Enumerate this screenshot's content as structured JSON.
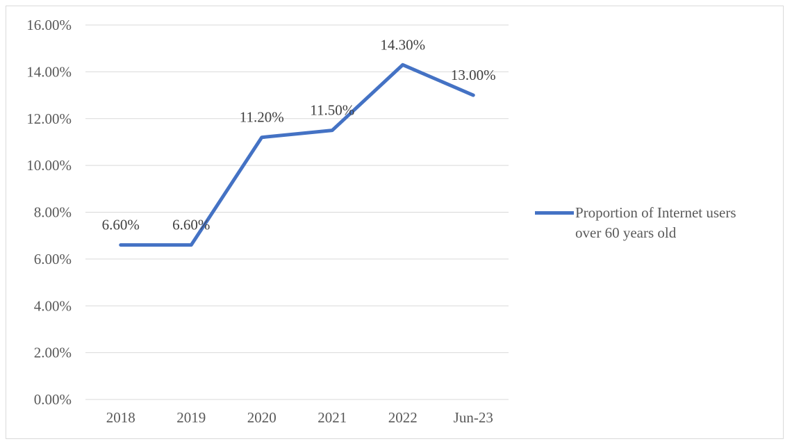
{
  "chart_data": {
    "type": "line",
    "categories": [
      "2018",
      "2019",
      "2020",
      "2021",
      "2022",
      "Jun-23"
    ],
    "series": [
      {
        "name": "Proportion of Internet users over 60 years old",
        "values": [
          6.6,
          6.6,
          11.2,
          11.5,
          14.3,
          13.0
        ],
        "data_labels": [
          "6.60%",
          "6.60%",
          "11.20%",
          "11.50%",
          "14.30%",
          "13.00%"
        ],
        "color": "#4472c4"
      }
    ],
    "y_ticks": [
      "0.00%",
      "2.00%",
      "4.00%",
      "6.00%",
      "8.00%",
      "10.00%",
      "12.00%",
      "14.00%",
      "16.00%"
    ],
    "ylim": [
      0,
      16
    ],
    "grid": true,
    "legend_position": "right"
  }
}
